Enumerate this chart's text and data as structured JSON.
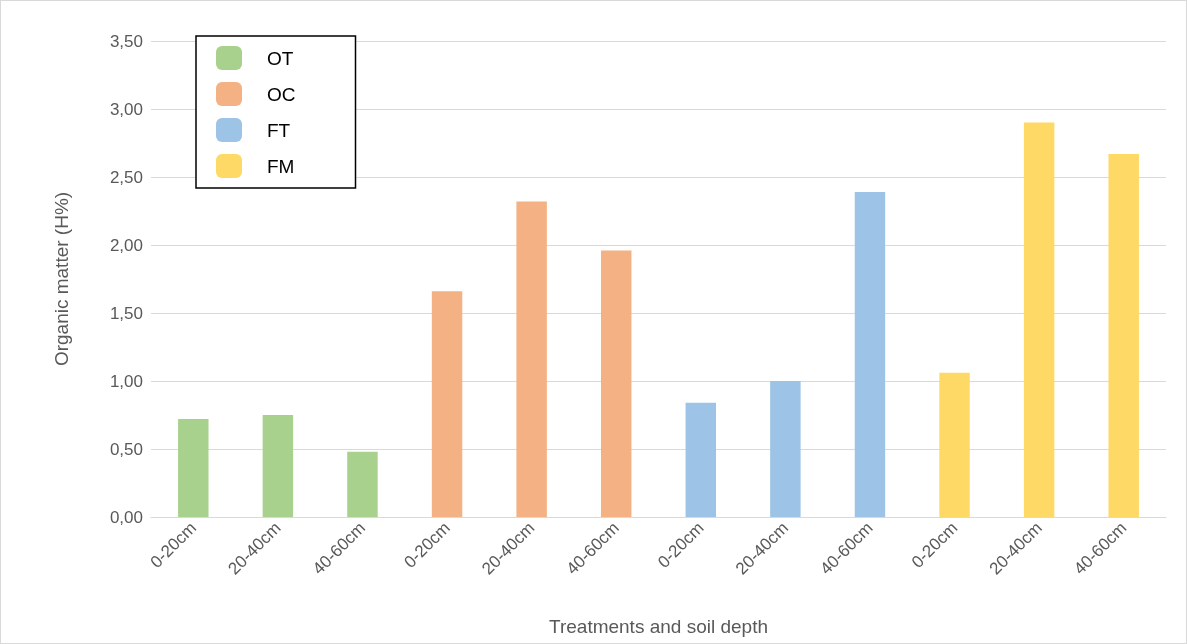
{
  "chart_data": {
    "type": "bar",
    "xlabel": "Treatments and soil depth",
    "ylabel": "Organic matter (H%)",
    "categories": [
      "0-20cm",
      "20-40cm",
      "40-60cm",
      "0-20cm",
      "20-40cm",
      "40-60cm",
      "0-20cm",
      "20-40cm",
      "40-60cm",
      "0-20cm",
      "20-40cm",
      "40-60cm"
    ],
    "series": [
      {
        "name": "OT",
        "color": "#a9d18e",
        "values": [
          0.72,
          0.75,
          0.48,
          null,
          null,
          null,
          null,
          null,
          null,
          null,
          null,
          null
        ]
      },
      {
        "name": "OC",
        "color": "#f4b183",
        "values": [
          null,
          null,
          null,
          1.66,
          2.32,
          1.96,
          null,
          null,
          null,
          null,
          null,
          null
        ]
      },
      {
        "name": "FT",
        "color": "#9dc3e6",
        "values": [
          null,
          null,
          null,
          null,
          null,
          null,
          0.84,
          1.0,
          2.39,
          null,
          null,
          null
        ]
      },
      {
        "name": "FM",
        "color": "#ffd966",
        "values": [
          null,
          null,
          null,
          null,
          null,
          null,
          null,
          null,
          null,
          1.06,
          2.9,
          2.67
        ]
      }
    ],
    "ylim": [
      0,
      3.5
    ],
    "yticks": [
      {
        "value": 0,
        "label": "0,00"
      },
      {
        "value": 0.5,
        "label": "0,50"
      },
      {
        "value": 1,
        "label": "1,00"
      },
      {
        "value": 1.5,
        "label": "1,50"
      },
      {
        "value": 2,
        "label": "2,00"
      },
      {
        "value": 2.5,
        "label": "2,50"
      },
      {
        "value": 3,
        "label": "3,00"
      },
      {
        "value": 3.5,
        "label": "3,50"
      }
    ],
    "grid": "y",
    "legend": "top left"
  }
}
